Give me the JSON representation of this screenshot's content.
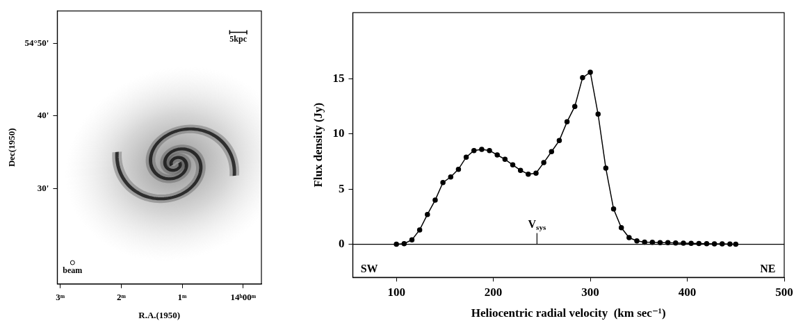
{
  "chart_data": [
    {
      "type": "map",
      "xlabel": "R.A.(1950)",
      "ylabel": "Dec(1950)",
      "xlim": [
        3.05,
        -0.3
      ],
      "xticks": [
        {
          "value": 3,
          "label": "3ᵐ"
        },
        {
          "value": 2,
          "label": "2ᵐ"
        },
        {
          "value": 1,
          "label": "1ᵐ"
        },
        {
          "value": 0,
          "label": "14ʰ00ᵐ"
        }
      ],
      "ylim": [
        16.8,
        54.5
      ],
      "yticks": [
        {
          "value": 50,
          "label": "54°50'"
        },
        {
          "value": 40,
          "label": "40'"
        },
        {
          "value": 30,
          "label": "30'"
        }
      ],
      "annotations": [
        {
          "text": "5kpc",
          "x": 0.08,
          "y": 50.6,
          "marker": "bar"
        },
        {
          "text": "beam",
          "x": 2.8,
          "y": 18.6,
          "marker": "circle"
        }
      ],
      "grid": false
    },
    {
      "type": "line",
      "xlabel": "Heliocentric radial velocity  (km sec⁻¹)",
      "ylabel": "Flux density (Jy)",
      "x": [
        100,
        108,
        116,
        124,
        132,
        140,
        148,
        156,
        164,
        172,
        180,
        188,
        196,
        204,
        212,
        220,
        228,
        236,
        244,
        252,
        260,
        268,
        276,
        284,
        292,
        300,
        308,
        316,
        324,
        332,
        340,
        348,
        356,
        364,
        372,
        380,
        388,
        396,
        404,
        412,
        420,
        428,
        436,
        444,
        450
      ],
      "values": [
        0,
        0.05,
        0.4,
        1.3,
        2.7,
        4.0,
        5.6,
        6.1,
        6.8,
        7.9,
        8.5,
        8.6,
        8.5,
        8.1,
        7.7,
        7.2,
        6.7,
        6.35,
        6.45,
        7.4,
        8.4,
        9.4,
        11.1,
        12.5,
        15.1,
        15.6,
        11.8,
        6.9,
        3.2,
        1.5,
        0.6,
        0.3,
        0.2,
        0.18,
        0.15,
        0.14,
        0.12,
        0.1,
        0.08,
        0.06,
        0.05,
        0.04,
        0.03,
        0.02,
        0.01
      ],
      "color": "#000000",
      "marker": "circle",
      "line_style": "solid",
      "xlim": [
        55,
        500
      ],
      "xticks": [
        100,
        200,
        300,
        400,
        500
      ],
      "ylim": [
        -3,
        21
      ],
      "yticks": [
        0,
        5,
        10,
        15
      ],
      "reference_line": 0,
      "annotations": [
        {
          "text": "Vsys",
          "x": 245,
          "marker": "tick"
        },
        {
          "text": "SW",
          "x": 72,
          "y": -2.3
        },
        {
          "text": "NE",
          "x": 483,
          "y": -2.3
        }
      ],
      "grid": false
    }
  ]
}
